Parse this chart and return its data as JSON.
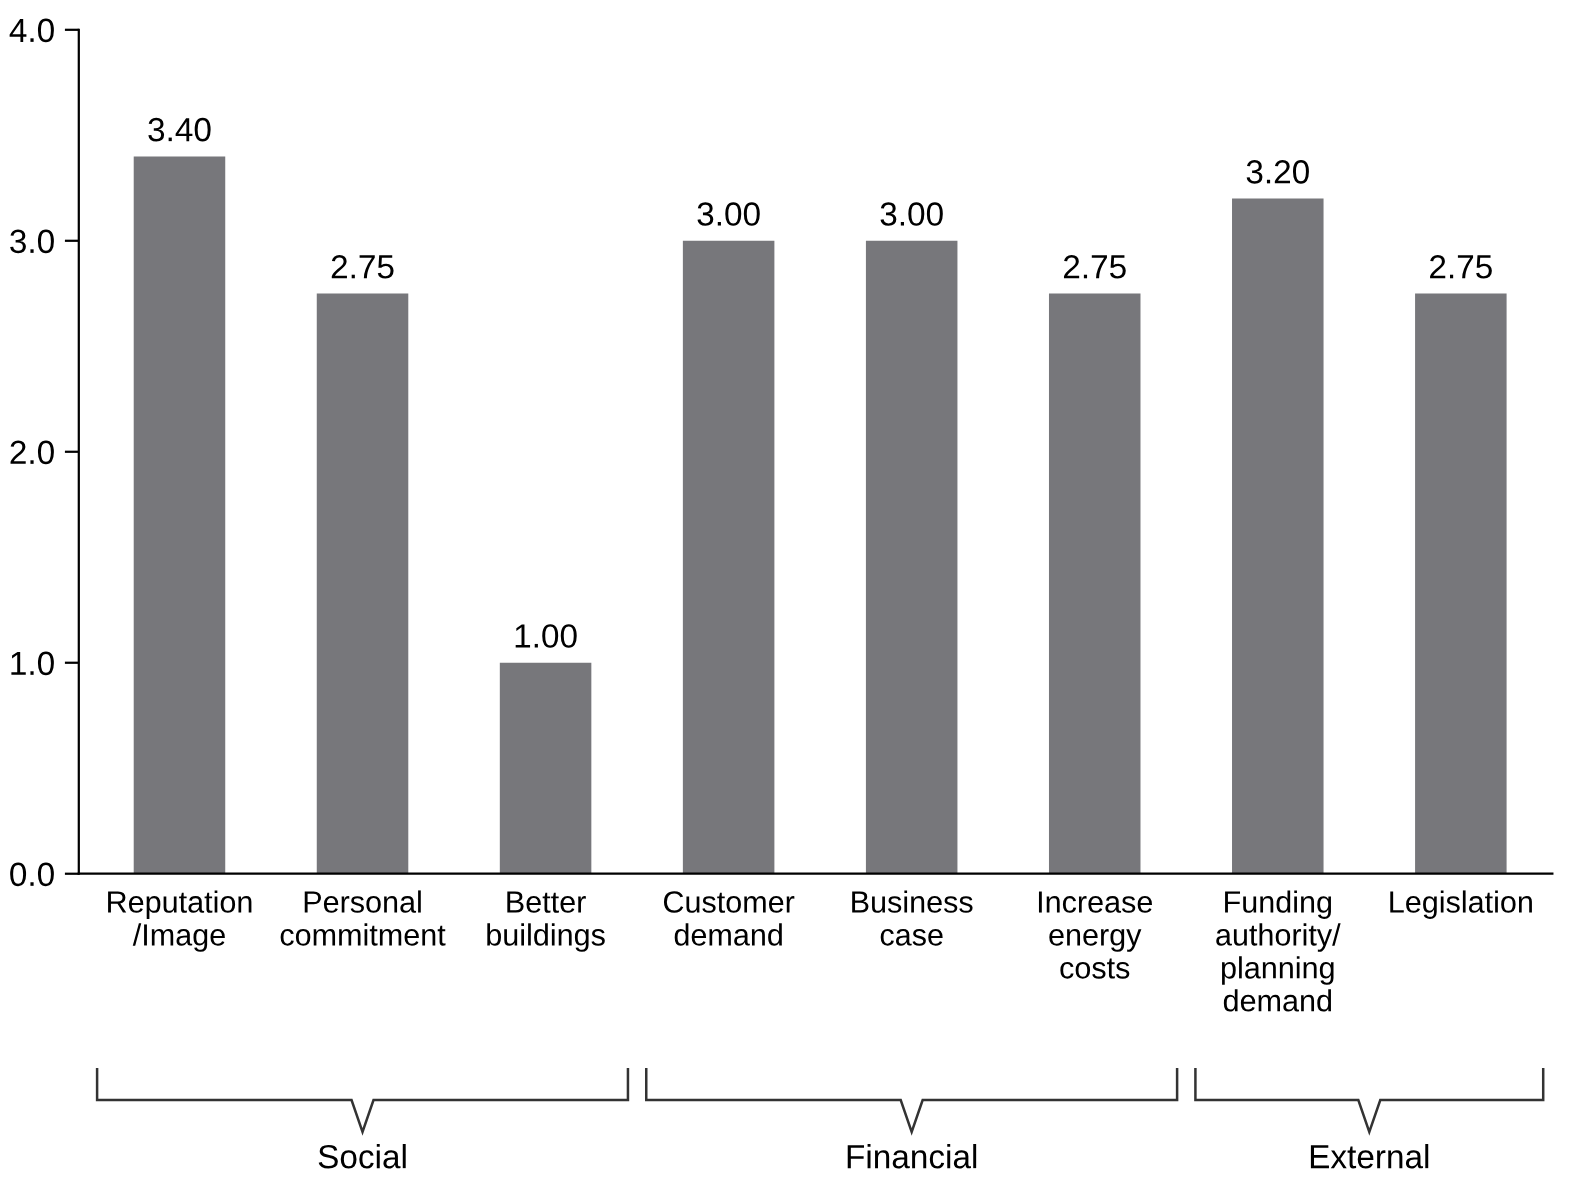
{
  "chart_data": {
    "type": "bar",
    "categories": [
      "Reputation\n/Image",
      "Personal\ncommitment",
      "Better\nbuildings",
      "Customer\ndemand",
      "Business\ncase",
      "Increase\nenergy\ncosts",
      "Funding\nauthority/\nplanning\ndemand",
      "Legislation"
    ],
    "values": [
      3.4,
      2.75,
      1.0,
      3.0,
      3.0,
      2.75,
      3.2,
      2.75
    ],
    "value_labels": [
      "3.40",
      "2.75",
      "1.00",
      "3.00",
      "3.00",
      "2.75",
      "3.20",
      "2.75"
    ],
    "color": "#77777b",
    "ylim": [
      0,
      4
    ],
    "yticks": [
      {
        "value": 0,
        "label": "0.0"
      },
      {
        "value": 1,
        "label": "1.0"
      },
      {
        "value": 2,
        "label": "2.0"
      },
      {
        "value": 3,
        "label": "3.0"
      },
      {
        "value": 4,
        "label": "4.0"
      }
    ],
    "grid": false,
    "legend": false,
    "annotations": [
      "Social",
      "Financial",
      "External"
    ]
  }
}
